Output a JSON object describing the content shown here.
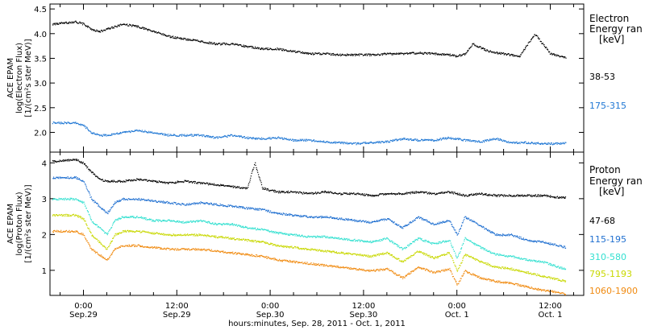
{
  "chart_data": [
    {
      "type": "scatter",
      "panel": "electron",
      "ylabel_lines": [
        "ACE EPAM",
        "log(Electron Flux)",
        "[1/(cm²s ster MeV)]"
      ],
      "ylim": [
        1.6,
        4.6
      ],
      "yticks": [
        2.0,
        2.5,
        3.0,
        3.5,
        4.0,
        4.5
      ],
      "ytick_labels": [
        "2.0",
        "2.5",
        "3.0",
        "3.5",
        "4.0",
        "4.5"
      ],
      "legend_title_lines": [
        "Electron",
        "Energy ran",
        "[keV]"
      ],
      "series": [
        {
          "name": "38-53",
          "color": "#000000",
          "x": [
            -4,
            -1,
            0,
            1,
            2,
            3,
            5,
            7,
            9,
            11,
            13,
            15,
            17,
            19,
            21,
            23,
            25,
            27,
            29,
            31,
            33,
            35,
            37,
            39,
            41,
            43,
            45,
            47,
            48,
            49,
            50,
            52,
            54,
            56,
            58,
            60,
            62
          ],
          "y": [
            4.2,
            4.25,
            4.2,
            4.1,
            4.05,
            4.1,
            4.2,
            4.15,
            4.05,
            3.95,
            3.9,
            3.85,
            3.8,
            3.8,
            3.75,
            3.7,
            3.7,
            3.65,
            3.6,
            3.6,
            3.58,
            3.58,
            3.58,
            3.6,
            3.6,
            3.62,
            3.6,
            3.58,
            3.55,
            3.6,
            3.8,
            3.65,
            3.6,
            3.55,
            4.0,
            3.6,
            3.52
          ]
        },
        {
          "name": "175-315",
          "color": "#1f77d4",
          "x": [
            -4,
            -1,
            0,
            1,
            2,
            3,
            5,
            7,
            9,
            11,
            13,
            15,
            17,
            19,
            21,
            23,
            25,
            27,
            29,
            31,
            33,
            35,
            37,
            39,
            41,
            43,
            45,
            47,
            49,
            51,
            53,
            55,
            57,
            59,
            61,
            62
          ],
          "y": [
            2.2,
            2.2,
            2.15,
            2.0,
            1.95,
            1.95,
            2.0,
            2.05,
            2.0,
            1.95,
            1.95,
            1.95,
            1.9,
            1.95,
            1.9,
            1.88,
            1.9,
            1.85,
            1.85,
            1.82,
            1.8,
            1.78,
            1.8,
            1.82,
            1.88,
            1.85,
            1.85,
            1.9,
            1.85,
            1.82,
            1.88,
            1.8,
            1.8,
            1.78,
            1.78,
            1.8
          ]
        }
      ]
    },
    {
      "type": "scatter",
      "panel": "proton",
      "ylabel_lines": [
        "ACE EPAM",
        "log(Proton Flux)",
        "[1/(cm²s ster MeV)]"
      ],
      "ylim": [
        0.3,
        4.3
      ],
      "yticks": [
        1,
        2,
        3,
        4
      ],
      "ytick_labels": [
        "1",
        "2",
        "3",
        "4"
      ],
      "legend_title_lines": [
        "Proton",
        "Energy ran",
        "[keV]"
      ],
      "series": [
        {
          "name": "47-68",
          "color": "#000000",
          "x": [
            -4,
            -1,
            0,
            1,
            2,
            3,
            5,
            7,
            9,
            11,
            13,
            15,
            17,
            19,
            21,
            22,
            23,
            25,
            27,
            29,
            31,
            33,
            35,
            37,
            39,
            41,
            43,
            45,
            47,
            49,
            51,
            53,
            55,
            57,
            59,
            61,
            62
          ],
          "y": [
            4.05,
            4.1,
            4.0,
            3.75,
            3.55,
            3.5,
            3.5,
            3.55,
            3.5,
            3.45,
            3.5,
            3.45,
            3.4,
            3.35,
            3.3,
            4.0,
            3.3,
            3.2,
            3.2,
            3.15,
            3.2,
            3.15,
            3.15,
            3.1,
            3.15,
            3.15,
            3.2,
            3.15,
            3.2,
            3.1,
            3.15,
            3.1,
            3.1,
            3.1,
            3.1,
            3.05,
            3.05
          ]
        },
        {
          "name": "115-195",
          "color": "#1f6fd0",
          "x": [
            -4,
            -1,
            0,
            1,
            2,
            3,
            4,
            5,
            7,
            9,
            11,
            13,
            15,
            17,
            19,
            21,
            23,
            25,
            27,
            29,
            31,
            33,
            35,
            37,
            39,
            41,
            43,
            45,
            47,
            48,
            49,
            51,
            53,
            55,
            57,
            59,
            61,
            62
          ],
          "y": [
            3.6,
            3.6,
            3.5,
            3.0,
            2.8,
            2.6,
            2.9,
            3.0,
            3.0,
            2.95,
            2.9,
            2.85,
            2.9,
            2.85,
            2.8,
            2.75,
            2.7,
            2.6,
            2.55,
            2.5,
            2.5,
            2.45,
            2.4,
            2.35,
            2.45,
            2.2,
            2.5,
            2.3,
            2.4,
            2.0,
            2.5,
            2.25,
            2.0,
            2.0,
            1.85,
            1.8,
            1.7,
            1.65
          ]
        },
        {
          "name": "310-580",
          "color": "#33e0d0",
          "x": [
            -4,
            -1,
            0,
            1,
            2,
            3,
            4,
            5,
            7,
            9,
            11,
            13,
            15,
            17,
            19,
            21,
            23,
            25,
            27,
            29,
            31,
            33,
            35,
            37,
            39,
            41,
            43,
            45,
            47,
            48,
            49,
            51,
            53,
            55,
            57,
            59,
            61,
            62
          ],
          "y": [
            3.0,
            3.0,
            2.9,
            2.4,
            2.2,
            2.0,
            2.4,
            2.5,
            2.5,
            2.4,
            2.4,
            2.35,
            2.4,
            2.3,
            2.3,
            2.2,
            2.15,
            2.05,
            2.0,
            1.95,
            1.95,
            1.9,
            1.85,
            1.8,
            1.9,
            1.6,
            1.9,
            1.75,
            1.85,
            1.35,
            1.9,
            1.65,
            1.45,
            1.4,
            1.3,
            1.25,
            1.1,
            1.05
          ]
        },
        {
          "name": "795-1193",
          "color": "#c8d800",
          "x": [
            -4,
            -1,
            0,
            1,
            2,
            3,
            4,
            5,
            7,
            9,
            11,
            13,
            15,
            17,
            19,
            21,
            23,
            25,
            27,
            29,
            31,
            33,
            35,
            37,
            39,
            41,
            43,
            45,
            47,
            48,
            49,
            51,
            53,
            55,
            57,
            59,
            61,
            62
          ],
          "y": [
            2.55,
            2.55,
            2.45,
            2.0,
            1.8,
            1.6,
            2.0,
            2.1,
            2.1,
            2.05,
            2.0,
            2.0,
            2.0,
            1.95,
            1.9,
            1.85,
            1.8,
            1.7,
            1.65,
            1.6,
            1.55,
            1.5,
            1.45,
            1.4,
            1.5,
            1.25,
            1.55,
            1.35,
            1.5,
            1.0,
            1.45,
            1.25,
            1.1,
            1.05,
            0.95,
            0.85,
            0.75,
            0.7
          ]
        },
        {
          "name": "1060-1900",
          "color": "#f08a10",
          "x": [
            -4,
            -1,
            0,
            1,
            2,
            3,
            4,
            5,
            7,
            9,
            11,
            13,
            15,
            17,
            19,
            21,
            23,
            25,
            27,
            29,
            31,
            33,
            35,
            37,
            39,
            41,
            43,
            45,
            47,
            48,
            49,
            51,
            53,
            55,
            57,
            59,
            61,
            62
          ],
          "y": [
            2.1,
            2.1,
            2.0,
            1.6,
            1.45,
            1.3,
            1.6,
            1.7,
            1.7,
            1.65,
            1.6,
            1.6,
            1.6,
            1.55,
            1.5,
            1.45,
            1.4,
            1.3,
            1.25,
            1.2,
            1.15,
            1.1,
            1.05,
            1.0,
            1.05,
            0.8,
            1.1,
            0.95,
            1.05,
            0.6,
            1.0,
            0.8,
            0.7,
            0.65,
            0.55,
            0.45,
            0.4,
            0.35
          ]
        }
      ]
    }
  ],
  "x_axis": {
    "range_hours": [
      -4.3,
      64.3
    ],
    "ticks": [
      {
        "hours": 0,
        "line1": "0:00",
        "line2": "Sep.29"
      },
      {
        "hours": 12,
        "line1": "12:00",
        "line2": "Sep.29"
      },
      {
        "hours": 24,
        "line1": "0:00",
        "line2": "Sep.30"
      },
      {
        "hours": 36,
        "line1": "12:00",
        "line2": "Sep.30"
      },
      {
        "hours": 48,
        "line1": "0:00",
        "line2": "Oct. 1"
      },
      {
        "hours": 60,
        "line1": "12:00",
        "line2": "Oct. 1"
      }
    ],
    "label": "hours:minutes, Sep. 28, 2011 - Oct.  1, 2011"
  }
}
